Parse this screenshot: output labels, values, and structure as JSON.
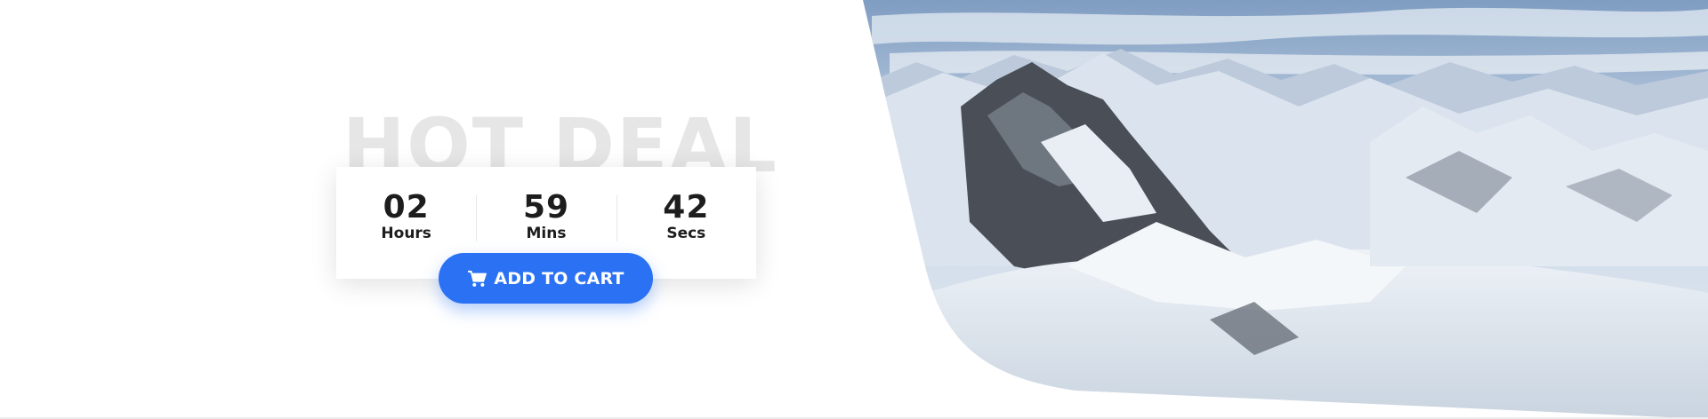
{
  "deal": {
    "title": "HOT DEAL",
    "countdown": [
      {
        "value": "02",
        "label": "Hours"
      },
      {
        "value": "59",
        "label": "Mins"
      },
      {
        "value": "42",
        "label": "Secs"
      }
    ],
    "button_label": "ADD TO CART",
    "button_icon": "shopping-cart-icon"
  },
  "colors": {
    "accent": "#2a72f3",
    "headline": "#e6e6e6",
    "text": "#1d1d1d",
    "sky": "#9fb7d3",
    "snow": "#f2f5f8",
    "rock": "#3b3f45"
  },
  "image": {
    "subject": "snowy-mountain-range"
  }
}
